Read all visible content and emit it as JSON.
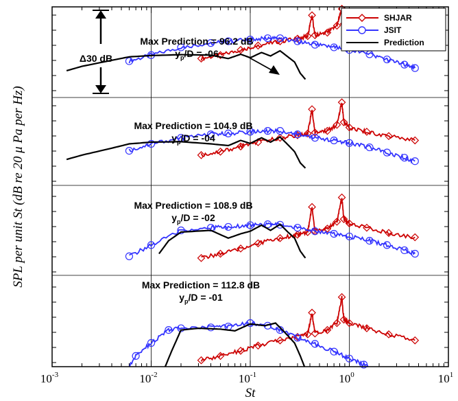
{
  "chart_data": {
    "type": "line",
    "xlabel": "St",
    "ylabel": "SPL per unit St (dB re 20 μ Pa per Hz)",
    "x_scale": "log",
    "xlim": [
      0.001,
      10
    ],
    "x_ticks": [
      {
        "base": "10",
        "exp": "-3",
        "value": 0.001
      },
      {
        "base": "10",
        "exp": "-2",
        "value": 0.01
      },
      {
        "base": "10",
        "exp": "-1",
        "value": 0.1
      },
      {
        "base": "10",
        "exp": "0",
        "value": 1
      },
      {
        "base": "10",
        "exp": "1",
        "value": 10
      }
    ],
    "grid": true,
    "legend_position": "top-right",
    "legend": [
      {
        "name": "SHJAR",
        "color": "#cc0000",
        "marker": "diamond"
      },
      {
        "name": "JSIT",
        "color": "#3333ff",
        "marker": "circle"
      },
      {
        "name": "Prediction",
        "color": "#000000",
        "marker": "none"
      }
    ],
    "scale_bar_label": "Δ30 dB",
    "panels": [
      {
        "annotation_line1": "Max Prediction = 96.2 dB",
        "annotation_line2_prefix": "y",
        "annotation_line2_sub": "p",
        "annotation_line2_suffix": "/D = -06",
        "series": [
          {
            "name": "Prediction",
            "x": [
              0.0014,
              0.002,
              0.004,
              0.006,
              0.01,
              0.02,
              0.04,
              0.06,
              0.08,
              0.1,
              0.13,
              0.16,
              0.2,
              0.24,
              0.28,
              0.32,
              0.36
            ],
            "y": [
              0.62,
              0.72,
              0.86,
              0.94,
              0.97,
              0.99,
              0.98,
              0.9,
              1.0,
              0.92,
              1.04,
              0.96,
              1.08,
              0.94,
              0.82,
              0.56,
              0.42
            ]
          },
          {
            "name": "JSIT",
            "x": [
              0.006,
              0.01,
              0.02,
              0.04,
              0.06,
              0.1,
              0.15,
              0.2,
              0.3,
              0.45,
              0.7,
              1.0,
              1.6,
              2.4,
              3.6,
              4.6
            ],
            "y": [
              0.84,
              0.98,
              1.16,
              1.26,
              1.3,
              1.34,
              1.37,
              1.37,
              1.3,
              1.22,
              1.16,
              1.1,
              1.0,
              0.88,
              0.76,
              0.68
            ]
          },
          {
            "name": "SHJAR",
            "x": [
              0.032,
              0.05,
              0.08,
              0.12,
              0.2,
              0.3,
              0.38,
              0.42,
              0.45,
              0.6,
              0.75,
              0.84,
              0.88,
              1.0,
              1.5,
              2.5,
              4.6
            ],
            "y": [
              0.9,
              0.98,
              1.1,
              1.2,
              1.3,
              1.36,
              1.42,
              1.9,
              1.44,
              1.5,
              1.66,
              2.05,
              1.7,
              1.56,
              1.46,
              1.36,
              1.26
            ]
          }
        ]
      },
      {
        "annotation_line1": "Max Prediction = 104.9 dB",
        "annotation_line2_prefix": "y",
        "annotation_line2_sub": "p",
        "annotation_line2_suffix": "/D = -04",
        "series": [
          {
            "name": "Prediction",
            "x": [
              0.0014,
              0.002,
              0.004,
              0.006,
              0.01,
              0.02,
              0.04,
              0.06,
              0.08,
              0.1,
              0.13,
              0.16,
              0.2,
              0.24,
              0.28,
              0.32,
              0.36
            ],
            "y": [
              0.6,
              0.7,
              0.86,
              0.96,
              1.0,
              1.01,
              0.96,
              0.92,
              1.04,
              0.97,
              1.1,
              1.0,
              1.12,
              0.94,
              0.78,
              0.52,
              0.4
            ]
          },
          {
            "name": "JSIT",
            "x": [
              0.006,
              0.01,
              0.02,
              0.04,
              0.06,
              0.1,
              0.15,
              0.2,
              0.3,
              0.45,
              0.7,
              1.0,
              1.6,
              2.4,
              3.6,
              4.6
            ],
            "y": [
              0.8,
              0.96,
              1.1,
              1.18,
              1.2,
              1.24,
              1.26,
              1.26,
              1.18,
              1.1,
              1.04,
              0.98,
              0.88,
              0.76,
              0.64,
              0.56
            ]
          },
          {
            "name": "SHJAR",
            "x": [
              0.032,
              0.05,
              0.08,
              0.12,
              0.2,
              0.3,
              0.38,
              0.42,
              0.45,
              0.6,
              0.75,
              0.84,
              0.88,
              1.0,
              1.5,
              2.5,
              4.6
            ],
            "y": [
              0.7,
              0.78,
              0.9,
              1.0,
              1.1,
              1.16,
              1.2,
              1.76,
              1.22,
              1.26,
              1.4,
              1.92,
              1.46,
              1.34,
              1.24,
              1.14,
              1.04
            ]
          }
        ]
      },
      {
        "annotation_line1": "Max Prediction = 108.9 dB",
        "annotation_line2_prefix": "y",
        "annotation_line2_sub": "p",
        "annotation_line2_suffix": "/D = -02",
        "series": [
          {
            "name": "Prediction",
            "x": [
              0.012,
              0.015,
              0.02,
              0.04,
              0.06,
              0.08,
              0.1,
              0.13,
              0.16,
              0.2,
              0.24,
              0.28,
              0.32,
              0.36
            ],
            "y": [
              0.5,
              0.8,
              1.0,
              1.04,
              0.86,
              0.96,
              1.02,
              1.16,
              1.04,
              1.18,
              1.0,
              0.86,
              0.56,
              0.4
            ]
          },
          {
            "name": "JSIT",
            "x": [
              0.006,
              0.01,
              0.02,
              0.04,
              0.06,
              0.1,
              0.15,
              0.2,
              0.3,
              0.45,
              0.7,
              1.0,
              1.6,
              2.4,
              3.6,
              4.6
            ],
            "y": [
              0.44,
              0.7,
              1.04,
              1.1,
              1.12,
              1.16,
              1.18,
              1.17,
              1.1,
              1.02,
              0.96,
              0.9,
              0.8,
              0.7,
              0.58,
              0.5
            ]
          },
          {
            "name": "SHJAR",
            "x": [
              0.032,
              0.05,
              0.08,
              0.12,
              0.2,
              0.3,
              0.38,
              0.42,
              0.45,
              0.6,
              0.75,
              0.84,
              0.88,
              1.0,
              1.5,
              2.5,
              4.6
            ],
            "y": [
              0.4,
              0.5,
              0.62,
              0.74,
              0.86,
              0.94,
              1.0,
              1.58,
              1.02,
              1.08,
              1.24,
              1.8,
              1.3,
              1.2,
              1.1,
              0.98,
              0.88
            ]
          }
        ]
      },
      {
        "annotation_line1": "Max Prediction = 112.8 dB",
        "annotation_line2_prefix": "y",
        "annotation_line2_sub": "p",
        "annotation_line2_suffix": "/D = -01",
        "series": [
          {
            "name": "Prediction",
            "x": [
              0.013,
              0.016,
              0.02,
              0.03,
              0.05,
              0.07,
              0.1,
              0.14,
              0.18,
              0.22,
              0.28,
              0.32,
              0.36
            ],
            "y": [
              -0.2,
              0.3,
              0.8,
              0.84,
              0.82,
              0.78,
              0.94,
              0.9,
              0.96,
              0.76,
              0.5,
              0.2,
              -0.1
            ]
          },
          {
            "name": "JSIT",
            "x": [
              0.005,
              0.007,
              0.01,
              0.015,
              0.02,
              0.04,
              0.06,
              0.1,
              0.15,
              0.2,
              0.3,
              0.45,
              0.7,
              1.0,
              1.4,
              2.0
            ],
            "y": [
              -0.3,
              0.2,
              0.5,
              0.8,
              0.84,
              0.86,
              0.88,
              0.96,
              0.9,
              0.8,
              0.62,
              0.48,
              0.3,
              0.14,
              0.0,
              -0.2
            ]
          },
          {
            "name": "SHJAR",
            "x": [
              0.032,
              0.05,
              0.08,
              0.12,
              0.2,
              0.3,
              0.38,
              0.42,
              0.45,
              0.6,
              0.75,
              0.84,
              0.88,
              1.0,
              1.5,
              2.5,
              4.6
            ],
            "y": [
              0.1,
              0.2,
              0.32,
              0.44,
              0.56,
              0.64,
              0.7,
              1.2,
              0.72,
              0.8,
              0.96,
              1.56,
              1.04,
              0.96,
              0.84,
              0.7,
              0.56
            ]
          }
        ]
      }
    ]
  },
  "colors": {
    "SHJAR": "#cc0000",
    "JSIT": "#3333ff",
    "Prediction": "#000000",
    "grid": "#000000"
  }
}
